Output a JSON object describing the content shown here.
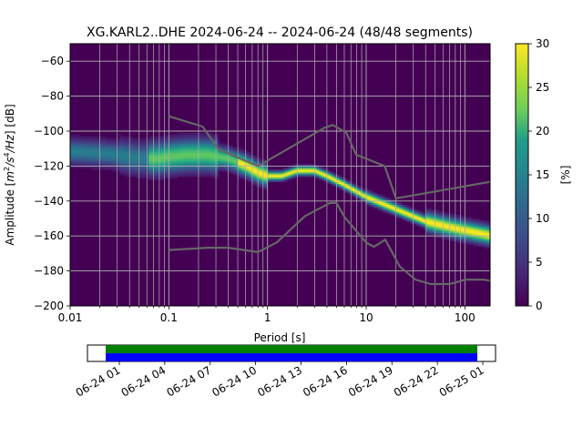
{
  "chart_data": {
    "type": "heatmap",
    "title": "XG.KARL2..DHE   2024-06-24 -- 2024-06-24  (48/48 segments)",
    "xlabel": "Period [s]",
    "ylabel_prefix": "Amplitude [",
    "ylabel_m": "m",
    "ylabel_sup2": "2",
    "ylabel_mid": "/s",
    "ylabel_sup4": "4",
    "ylabel_suffix": "/Hz] [dB]",
    "x_scale": "log",
    "xlim": [
      0.01,
      180
    ],
    "ylim": [
      -200,
      -50
    ],
    "x_ticks": [
      {
        "value": 0.01,
        "label": "0.01"
      },
      {
        "value": 0.1,
        "label": "0.1"
      },
      {
        "value": 1,
        "label": "1"
      },
      {
        "value": 10,
        "label": "10"
      },
      {
        "value": 100,
        "label": "100"
      }
    ],
    "y_ticks": [
      {
        "value": -60,
        "label": "−60"
      },
      {
        "value": -80,
        "label": "−80"
      },
      {
        "value": -100,
        "label": "−100"
      },
      {
        "value": -120,
        "label": "−120"
      },
      {
        "value": -140,
        "label": "−140"
      },
      {
        "value": -160,
        "label": "−160"
      },
      {
        "value": -180,
        "label": "−180"
      },
      {
        "value": -200,
        "label": "−200"
      }
    ],
    "grid": true,
    "colorbar": {
      "label": "[%]",
      "range": [
        0,
        30
      ],
      "ticks": [
        {
          "value": 0,
          "label": "0"
        },
        {
          "value": 5,
          "label": "5"
        },
        {
          "value": 10,
          "label": "10"
        },
        {
          "value": 15,
          "label": "15"
        },
        {
          "value": 20,
          "label": "20"
        },
        {
          "value": 25,
          "label": "25"
        },
        {
          "value": 30,
          "label": "30"
        }
      ]
    },
    "psd_mode_curve": [
      [
        0.01,
        -112
      ],
      [
        0.02,
        -113
      ],
      [
        0.03,
        -114
      ],
      [
        0.05,
        -116
      ],
      [
        0.08,
        -116
      ],
      [
        0.1,
        -115
      ],
      [
        0.15,
        -114
      ],
      [
        0.25,
        -114
      ],
      [
        0.4,
        -116
      ],
      [
        0.6,
        -120
      ],
      [
        0.8,
        -124
      ],
      [
        1.0,
        -126
      ],
      [
        1.4,
        -126
      ],
      [
        2.0,
        -123
      ],
      [
        3.0,
        -123
      ],
      [
        4.0,
        -126
      ],
      [
        6.0,
        -131
      ],
      [
        10,
        -138
      ],
      [
        20,
        -145
      ],
      [
        40,
        -152
      ],
      [
        80,
        -156
      ],
      [
        180,
        -160
      ]
    ],
    "new_high_noise_model": [
      [
        0.1,
        -91.5
      ],
      [
        0.22,
        -97.4
      ],
      [
        0.32,
        -110.5
      ],
      [
        0.8,
        -120
      ],
      [
        3.8,
        -98
      ],
      [
        4.6,
        -96.5
      ],
      [
        6.3,
        -101
      ],
      [
        7.9,
        -113.5
      ],
      [
        15.4,
        -120
      ],
      [
        20,
        -138.5
      ],
      [
        180,
        -129
      ]
    ],
    "new_low_noise_model": [
      [
        0.1,
        -168
      ],
      [
        0.25,
        -166.7
      ],
      [
        0.4,
        -166.7
      ],
      [
        0.8,
        -169.2
      ],
      [
        1.24,
        -163.7
      ],
      [
        2.4,
        -148.6
      ],
      [
        4.3,
        -141.1
      ],
      [
        5,
        -141.1
      ],
      [
        6,
        -149
      ],
      [
        10,
        -163.8
      ],
      [
        12,
        -166.2
      ],
      [
        15.6,
        -162.1
      ],
      [
        21.9,
        -177.5
      ],
      [
        31.6,
        -185
      ],
      [
        45,
        -187.5
      ],
      [
        70,
        -187.5
      ],
      [
        101,
        -185
      ],
      [
        154,
        -185
      ],
      [
        180,
        -185.5
      ]
    ],
    "time_axis": {
      "ticks": [
        "06-24 01",
        "06-24 04",
        "06-24 07",
        "06-24 10",
        "06-24 13",
        "06-24 16",
        "06-24 19",
        "06-24 22",
        "06-25 01"
      ],
      "coverage_color": "#008000",
      "data_color": "#0000ff"
    }
  }
}
